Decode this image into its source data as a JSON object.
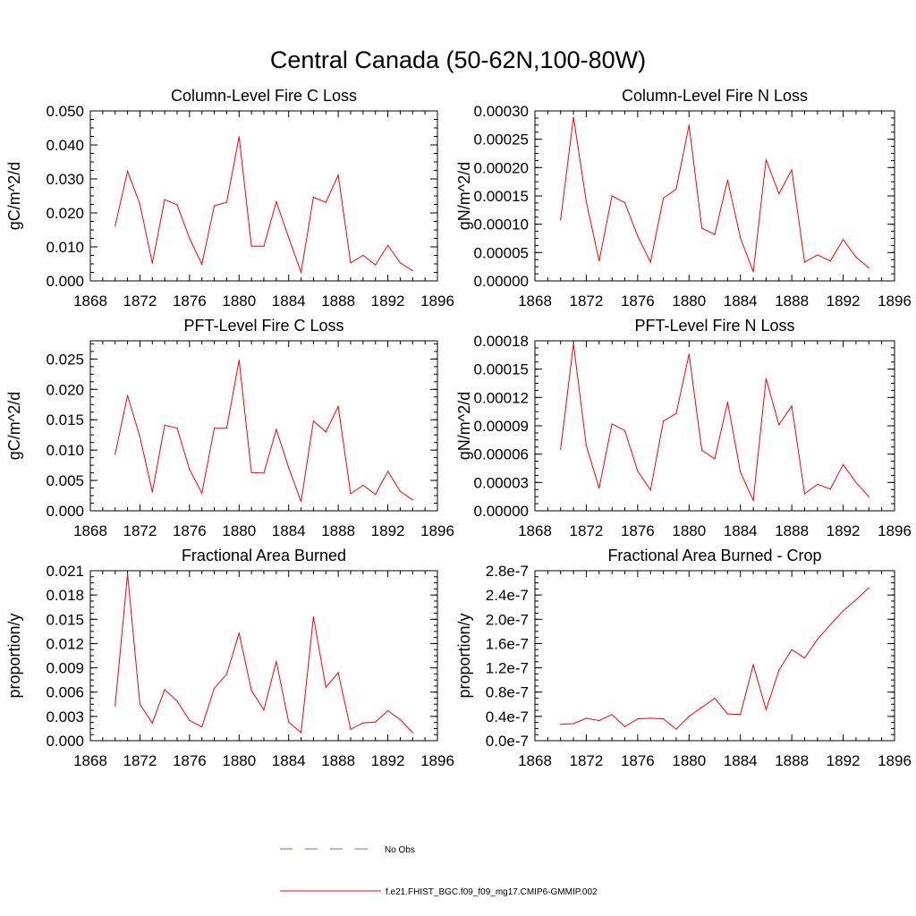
{
  "figure": {
    "title": "Central Canada (50-62N,100-80W)"
  },
  "legend": {
    "entries": [
      {
        "label": "No Obs",
        "color": "#6a6ad0",
        "style": "dashed"
      },
      {
        "label": "f.e21.FHIST_BGC.f09_f09_mg17.CMIP6-GMMIP.002",
        "color": "#ff0000",
        "style": "solid"
      }
    ]
  },
  "chart_data": [
    {
      "type": "line",
      "title": "Column-Level Fire C Loss",
      "ylabel": "gC/m^2/d",
      "xlabel": "",
      "xlim": [
        1868,
        1896
      ],
      "xticks": [
        "1868",
        "1872",
        "1876",
        "1880",
        "1884",
        "1888",
        "1892",
        "1896"
      ],
      "ylim": [
        0,
        0.05
      ],
      "yticks": [
        "0.000",
        "0.010",
        "0.020",
        "0.030",
        "0.040",
        "0.050"
      ],
      "x": [
        1870,
        1871,
        1872,
        1873,
        1874,
        1875,
        1876,
        1877,
        1878,
        1879,
        1880,
        1881,
        1882,
        1883,
        1884,
        1885,
        1886,
        1887,
        1888,
        1889,
        1890,
        1891,
        1892,
        1893,
        1894
      ],
      "series": [
        {
          "name": "f.e21.FHIST_BGC.f09_f09_mg17.CMIP6-GMMIP.002",
          "values": [
            0.0161,
            0.0323,
            0.0226,
            0.0052,
            0.0239,
            0.0224,
            0.0125,
            0.0049,
            0.0221,
            0.0231,
            0.0424,
            0.0102,
            0.0102,
            0.0233,
            0.0127,
            0.0025,
            0.0246,
            0.0231,
            0.0311,
            0.0053,
            0.0075,
            0.0047,
            0.0105,
            0.0053,
            0.003
          ]
        }
      ]
    },
    {
      "type": "line",
      "title": "Column-Level Fire N Loss",
      "ylabel": "gN/m^2/d",
      "xlabel": "",
      "xlim": [
        1868,
        1896
      ],
      "xticks": [
        "1868",
        "1872",
        "1876",
        "1880",
        "1884",
        "1888",
        "1892",
        "1896"
      ],
      "ylim": [
        0,
        0.0003
      ],
      "yticks": [
        "0.00000",
        "0.00005",
        "0.00010",
        "0.00015",
        "0.00020",
        "0.00025",
        "0.00030"
      ],
      "x": [
        1870,
        1871,
        1872,
        1873,
        1874,
        1875,
        1876,
        1877,
        1878,
        1879,
        1880,
        1881,
        1882,
        1883,
        1884,
        1885,
        1886,
        1887,
        1888,
        1889,
        1890,
        1891,
        1892,
        1893,
        1894
      ],
      "series": [
        {
          "name": "f.e21.FHIST_BGC.f09_f09_mg17.CMIP6-GMMIP.002",
          "values": [
            0.000108,
            0.000289,
            0.00014,
            3.5e-05,
            0.00015,
            0.000138,
            7.9e-05,
            3.3e-05,
            0.000146,
            0.000162,
            0.000275,
            9.3e-05,
            8.2e-05,
            0.000178,
            7.6e-05,
            1.6e-05,
            0.000214,
            0.000154,
            0.000196,
            3.3e-05,
            4.6e-05,
            3.5e-05,
            7.3e-05,
            4.2e-05,
            2.3e-05
          ]
        }
      ]
    },
    {
      "type": "line",
      "title": "PFT-Level Fire C Loss",
      "ylabel": "gC/m^2/d",
      "xlabel": "",
      "xlim": [
        1868,
        1896
      ],
      "xticks": [
        "1868",
        "1872",
        "1876",
        "1880",
        "1884",
        "1888",
        "1892",
        "1896"
      ],
      "ylim": [
        0,
        0.028
      ],
      "yticks": [
        "0.000",
        "0.005",
        "0.010",
        "0.015",
        "0.020",
        "0.025"
      ],
      "ytickvals": [
        0,
        0.005,
        0.01,
        0.015,
        0.02,
        0.025
      ],
      "x": [
        1870,
        1871,
        1872,
        1873,
        1874,
        1875,
        1876,
        1877,
        1878,
        1879,
        1880,
        1881,
        1882,
        1883,
        1884,
        1885,
        1886,
        1887,
        1888,
        1889,
        1890,
        1891,
        1892,
        1893,
        1894
      ],
      "series": [
        {
          "name": "f.e21.FHIST_BGC.f09_f09_mg17.CMIP6-GMMIP.002",
          "values": [
            0.0093,
            0.019,
            0.0122,
            0.0031,
            0.0141,
            0.0136,
            0.0068,
            0.0029,
            0.0136,
            0.0136,
            0.0248,
            0.0063,
            0.0062,
            0.0134,
            0.0071,
            0.0015,
            0.0148,
            0.013,
            0.0172,
            0.0028,
            0.0042,
            0.0027,
            0.0065,
            0.0032,
            0.0018
          ]
        }
      ]
    },
    {
      "type": "line",
      "title": "PFT-Level Fire N Loss",
      "ylabel": "gN/m^2/d",
      "xlabel": "",
      "xlim": [
        1868,
        1896
      ],
      "xticks": [
        "1868",
        "1872",
        "1876",
        "1880",
        "1884",
        "1888",
        "1892",
        "1896"
      ],
      "ylim": [
        0,
        0.00018
      ],
      "yticks": [
        "0.00000",
        "0.00003",
        "0.00006",
        "0.00009",
        "0.00012",
        "0.00015",
        "0.00018"
      ],
      "x": [
        1870,
        1871,
        1872,
        1873,
        1874,
        1875,
        1876,
        1877,
        1878,
        1879,
        1880,
        1881,
        1882,
        1883,
        1884,
        1885,
        1886,
        1887,
        1888,
        1889,
        1890,
        1891,
        1892,
        1893,
        1894
      ],
      "series": [
        {
          "name": "f.e21.FHIST_BGC.f09_f09_mg17.CMIP6-GMMIP.002",
          "values": [
            6.5e-05,
            0.000177,
            6.9e-05,
            2.4e-05,
            9.2e-05,
            8.5e-05,
            4.2e-05,
            2.2e-05,
            9.5e-05,
            0.000103,
            0.000166,
            6.4e-05,
            5.5e-05,
            0.000115,
            4.1e-05,
            1.1e-05,
            0.00014,
            9.1e-05,
            0.000111,
            1.8e-05,
            2.8e-05,
            2.3e-05,
            4.9e-05,
            3e-05,
            1.5e-05
          ]
        }
      ]
    },
    {
      "type": "line",
      "title": "Fractional Area Burned",
      "ylabel": "proportion/y",
      "xlabel": "",
      "xlim": [
        1868,
        1896
      ],
      "xticks": [
        "1868",
        "1872",
        "1876",
        "1880",
        "1884",
        "1888",
        "1892",
        "1896"
      ],
      "ylim": [
        0,
        0.021
      ],
      "yticks": [
        "0.000",
        "0.003",
        "0.006",
        "0.009",
        "0.012",
        "0.015",
        "0.018",
        "0.021"
      ],
      "x": [
        1870,
        1871,
        1872,
        1873,
        1874,
        1875,
        1876,
        1877,
        1878,
        1879,
        1880,
        1881,
        1882,
        1883,
        1884,
        1885,
        1886,
        1887,
        1888,
        1889,
        1890,
        1891,
        1892,
        1893,
        1894
      ],
      "series": [
        {
          "name": "f.e21.FHIST_BGC.f09_f09_mg17.CMIP6-GMMIP.002",
          "values": [
            0.0043,
            0.0206,
            0.0045,
            0.0022,
            0.0063,
            0.0049,
            0.0025,
            0.0017,
            0.0065,
            0.0082,
            0.0133,
            0.0062,
            0.0038,
            0.0098,
            0.0023,
            0.001,
            0.0153,
            0.0066,
            0.0084,
            0.0014,
            0.0022,
            0.0023,
            0.0037,
            0.0026,
            0.001
          ]
        }
      ]
    },
    {
      "type": "line",
      "title": "Fractional Area Burned - Crop",
      "ylabel": "proportion/y",
      "xlabel": "",
      "xlim": [
        1868,
        1896
      ],
      "xticks": [
        "1868",
        "1872",
        "1876",
        "1880",
        "1884",
        "1888",
        "1892",
        "1896"
      ],
      "ylim": [
        0,
        2.8e-07
      ],
      "yticks": [
        "0.0e-7",
        "0.4e-7",
        "0.8e-7",
        "1.2e-7",
        "1.6e-7",
        "2.0e-7",
        "2.4e-7",
        "2.8e-7"
      ],
      "x": [
        1870,
        1871,
        1872,
        1873,
        1874,
        1875,
        1876,
        1877,
        1878,
        1879,
        1880,
        1881,
        1882,
        1883,
        1884,
        1885,
        1886,
        1887,
        1888,
        1889,
        1890,
        1891,
        1892,
        1893,
        1894
      ],
      "series": [
        {
          "name": "f.e21.FHIST_BGC.f09_f09_mg17.CMIP6-GMMIP.002",
          "values": [
            2.7e-08,
            2.8e-08,
            3.7e-08,
            3.3e-08,
            4.3e-08,
            2.3e-08,
            3.6e-08,
            3.7e-08,
            3.6e-08,
            1.9e-08,
            4e-08,
            5.5e-08,
            7e-08,
            4.4e-08,
            4.3e-08,
            1.25e-07,
            5.1e-08,
            1.16e-07,
            1.5e-07,
            1.36e-07,
            1.67e-07,
            1.91e-07,
            2.14e-07,
            2.32e-07,
            2.52e-07
          ]
        }
      ]
    }
  ]
}
